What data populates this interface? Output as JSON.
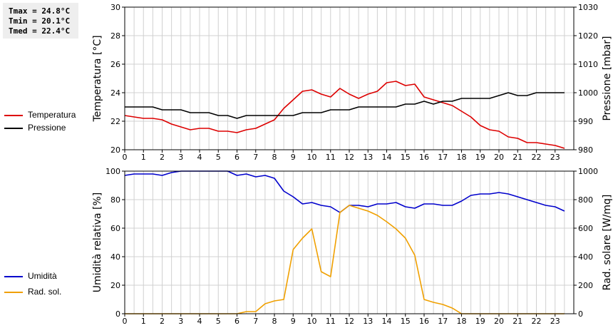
{
  "stats": {
    "tmax": "Tmax = 24.8°C",
    "tmin": "Tmin = 20.1°C",
    "tmed": "Tmed = 22.4°C"
  },
  "colors": {
    "temperatura": "#dd0000",
    "pressione": "#000000",
    "umidita": "#0000cc",
    "radiazione": "#f0a000",
    "grid": "#d0d0d0"
  },
  "chart_data": [
    {
      "type": "line",
      "title": "",
      "xlabel": "",
      "x_ticks": [
        "0",
        "1",
        "2",
        "3",
        "4",
        "5",
        "6",
        "7",
        "8",
        "9",
        "10",
        "11",
        "12",
        "13",
        "14",
        "15",
        "16",
        "17",
        "18",
        "19",
        "20",
        "21",
        "22",
        "23"
      ],
      "xlim": [
        0,
        24
      ],
      "ylabel_left": "Temperatura [°C]",
      "ylim_left": [
        20,
        30
      ],
      "yticks_left": [
        "20",
        "22",
        "24",
        "26",
        "28",
        "30"
      ],
      "ylabel_right": "Pressione [mbar]",
      "ylim_right": [
        980,
        1030
      ],
      "yticks_right": [
        "980",
        "990",
        "1000",
        "1010",
        "1020",
        "1030"
      ],
      "grid": true,
      "legend_position": "left",
      "series": [
        {
          "name": "Temperatura",
          "axis": "left",
          "color": "#dd0000",
          "x": [
            0,
            0.5,
            1,
            1.5,
            2,
            2.5,
            3,
            3.5,
            4,
            4.5,
            5,
            5.5,
            6,
            6.5,
            7,
            7.5,
            8,
            8.5,
            9,
            9.5,
            10,
            10.5,
            11,
            11.5,
            12,
            12.5,
            13,
            13.5,
            14,
            14.5,
            15,
            15.5,
            16,
            16.5,
            17,
            17.5,
            18,
            18.5,
            19,
            19.5,
            20,
            20.5,
            21,
            21.5,
            22,
            22.5,
            23,
            23.5
          ],
          "values": [
            22.4,
            22.3,
            22.2,
            22.2,
            22.1,
            21.8,
            21.6,
            21.4,
            21.5,
            21.5,
            21.3,
            21.3,
            21.2,
            21.4,
            21.5,
            21.8,
            22.1,
            22.9,
            23.5,
            24.1,
            24.2,
            23.9,
            23.7,
            24.3,
            23.9,
            23.6,
            23.9,
            24.1,
            24.7,
            24.8,
            24.5,
            24.6,
            23.7,
            23.5,
            23.3,
            23.1,
            22.7,
            22.3,
            21.7,
            21.4,
            21.3,
            20.9,
            20.8,
            20.5,
            20.5,
            20.4,
            20.3,
            20.1
          ]
        },
        {
          "name": "Pressione",
          "axis": "right",
          "color": "#000000",
          "x": [
            0,
            0.5,
            1,
            1.5,
            2,
            2.5,
            3,
            3.5,
            4,
            4.5,
            5,
            5.5,
            6,
            6.5,
            7,
            7.5,
            8,
            8.5,
            9,
            9.5,
            10,
            10.5,
            11,
            11.5,
            12,
            12.5,
            13,
            13.5,
            14,
            14.5,
            15,
            15.5,
            16,
            16.5,
            17,
            17.5,
            18,
            18.5,
            19,
            19.5,
            20,
            20.5,
            21,
            21.5,
            22,
            22.5,
            23,
            23.5
          ],
          "values": [
            995,
            995,
            995,
            995,
            994,
            994,
            994,
            993,
            993,
            993,
            992,
            992,
            991,
            992,
            992,
            992,
            992,
            992,
            992,
            993,
            993,
            993,
            994,
            994,
            994,
            995,
            995,
            995,
            995,
            995,
            996,
            996,
            997,
            996,
            997,
            997,
            998,
            998,
            998,
            998,
            999,
            1000,
            999,
            999,
            1000,
            1000,
            1000,
            1000
          ]
        }
      ]
    },
    {
      "type": "line",
      "title": "",
      "xlabel": "",
      "x_ticks": [
        "0",
        "1",
        "2",
        "3",
        "4",
        "5",
        "6",
        "7",
        "8",
        "9",
        "10",
        "11",
        "12",
        "13",
        "14",
        "15",
        "16",
        "17",
        "18",
        "19",
        "20",
        "21",
        "22",
        "23"
      ],
      "xlim": [
        0,
        24
      ],
      "ylabel_left": "Umidità relativa [%]",
      "ylim_left": [
        0,
        100
      ],
      "yticks_left": [
        "0",
        "20",
        "40",
        "60",
        "80",
        "100"
      ],
      "ylabel_right": "Rad. solare [W/mq]",
      "ylim_right": [
        0,
        1000
      ],
      "yticks_right": [
        "0",
        "200",
        "400",
        "600",
        "800",
        "1000"
      ],
      "grid": true,
      "legend_position": "left",
      "series": [
        {
          "name": "Umidità",
          "axis": "left",
          "color": "#0000cc",
          "x": [
            0,
            0.5,
            1,
            1.5,
            2,
            2.5,
            3,
            3.5,
            4,
            4.5,
            5,
            5.5,
            6,
            6.5,
            7,
            7.5,
            8,
            8.5,
            9,
            9.5,
            10,
            10.5,
            11,
            11.5,
            12,
            12.5,
            13,
            13.5,
            14,
            14.5,
            15,
            15.5,
            16,
            16.5,
            17,
            17.5,
            18,
            18.5,
            19,
            19.5,
            20,
            20.5,
            21,
            21.5,
            22,
            22.5,
            23,
            23.5
          ],
          "values": [
            97,
            98,
            98,
            98,
            97,
            99,
            100,
            100,
            100,
            100,
            100,
            100,
            97,
            98,
            96,
            97,
            95,
            86,
            82,
            77,
            78,
            76,
            75,
            71,
            76,
            76,
            75,
            77,
            77,
            78,
            75,
            74,
            77,
            77,
            76,
            76,
            79,
            83,
            84,
            84,
            85,
            84,
            82,
            80,
            78,
            76,
            75,
            72
          ]
        },
        {
          "name": "Rad. sol.",
          "axis": "right",
          "color": "#f0a000",
          "x": [
            0,
            1,
            2,
            3,
            4,
            5,
            6,
            6.5,
            7,
            7.5,
            8,
            8.5,
            9,
            9.5,
            10,
            10.5,
            11,
            11.5,
            12,
            12.5,
            13,
            13.5,
            14,
            14.5,
            15,
            15.5,
            16,
            16.5,
            17,
            17.5,
            18,
            18.5,
            19,
            20,
            21,
            22,
            23,
            23.5
          ],
          "values": [
            0,
            0,
            0,
            0,
            0,
            0,
            0,
            15,
            15,
            70,
            90,
            100,
            450,
            530,
            595,
            295,
            260,
            710,
            760,
            740,
            720,
            690,
            645,
            595,
            530,
            410,
            100,
            80,
            65,
            40,
            0,
            0,
            0,
            0,
            0,
            0,
            0,
            0
          ]
        }
      ]
    }
  ]
}
